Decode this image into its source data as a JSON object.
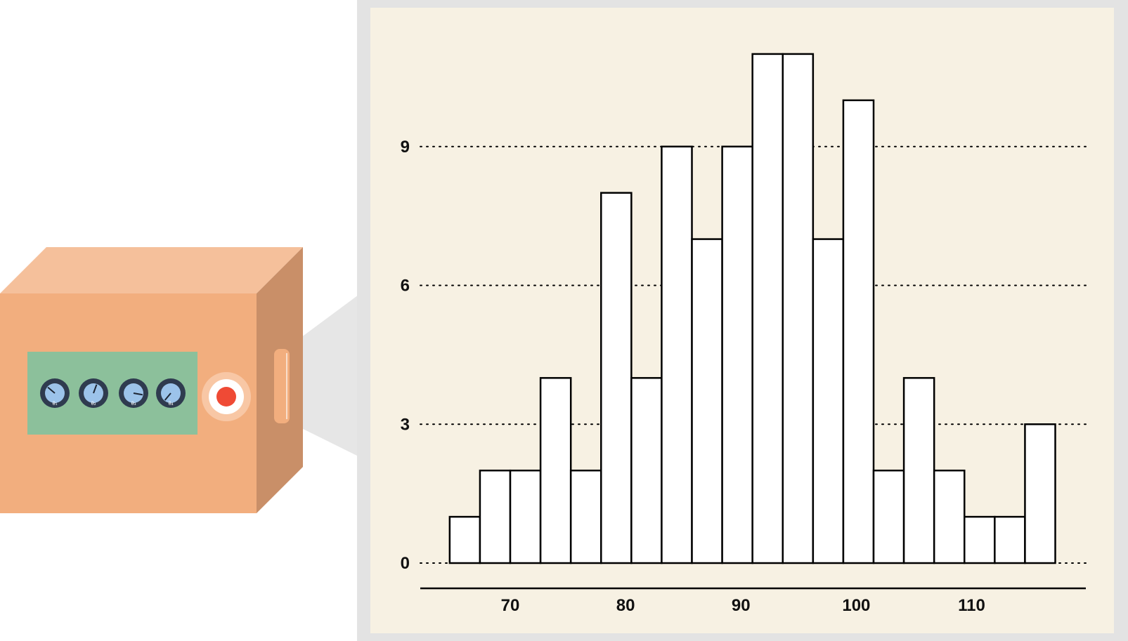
{
  "colors": {
    "box_front": "#f2ae7e",
    "box_top": "#f5c09b",
    "box_side": "#c98f68",
    "panel": "#8cc09b",
    "knob_outer": "#2f3b4f",
    "knob_face": "#9cc3ea",
    "button_ring": "#f8c7a5",
    "button_red": "#ef4a35",
    "beam": "#e6e6e6",
    "frame": "#e3e3e3",
    "plot_bg": "#f7f1e3"
  },
  "device": {
    "knobs": [
      {
        "label": "θ₁",
        "angle_deg": -50
      },
      {
        "label": "θ₂",
        "angle_deg": 20
      },
      {
        "label": "θ₃",
        "angle_deg": 100
      },
      {
        "label": "θ₄",
        "angle_deg": -140
      }
    ],
    "button_icon": "record-button-icon"
  },
  "chart_data": {
    "type": "bar",
    "title": "",
    "xlabel": "",
    "ylabel": "",
    "bin_start": 64.75,
    "bin_width": 2.625,
    "values": [
      1,
      2,
      2,
      4,
      2,
      8,
      4,
      9,
      7,
      9,
      11,
      11,
      7,
      10,
      2,
      4,
      2,
      1,
      1,
      3
    ],
    "x_ticks": [
      70,
      80,
      90,
      100,
      110
    ],
    "y_ticks": [
      0,
      3,
      6,
      9
    ],
    "xlim": [
      62.2,
      119.9
    ],
    "ylim": [
      0,
      12
    ],
    "grid": "horizontal dotted"
  }
}
